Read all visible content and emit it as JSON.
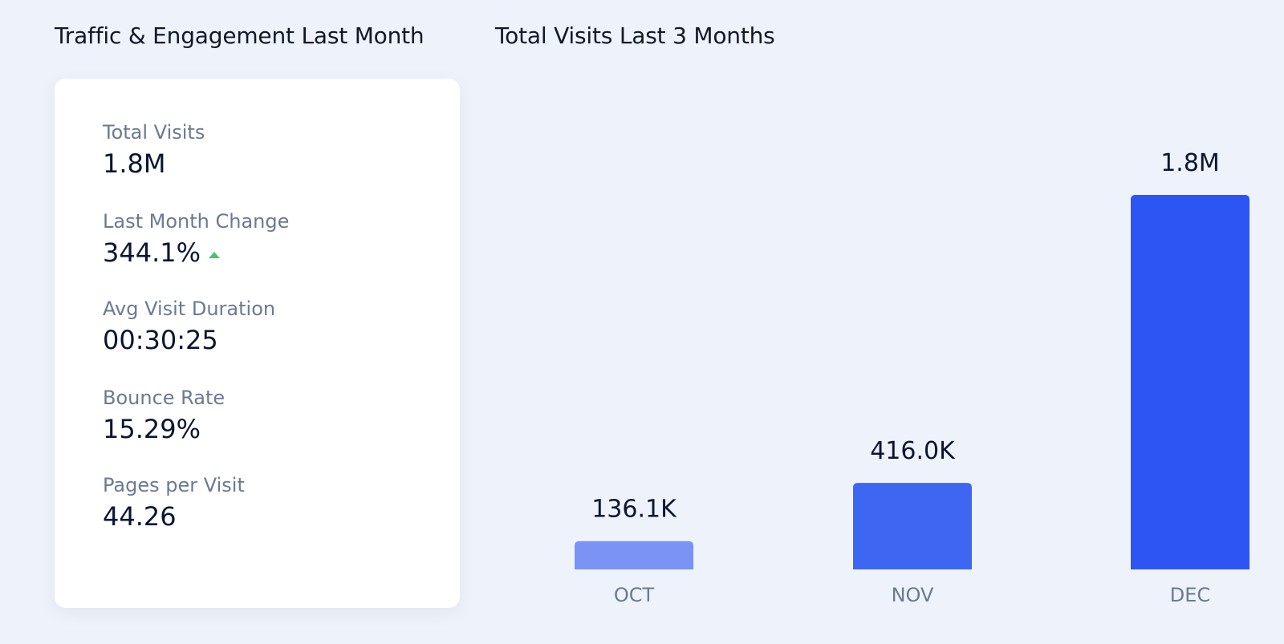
{
  "panels": {
    "left_title": "Traffic & Engagement Last Month",
    "right_title": "Total Visits Last 3 Months"
  },
  "stats": {
    "total_visits": {
      "label": "Total Visits",
      "value": "1.8M"
    },
    "last_month_change": {
      "label": "Last Month Change",
      "value": "344.1%",
      "trend": "up",
      "trend_color": "#4cc36b"
    },
    "avg_visit_duration": {
      "label": "Avg Visit Duration",
      "value": "00:30:25"
    },
    "bounce_rate": {
      "label": "Bounce Rate",
      "value": "15.29%"
    },
    "pages_per_visit": {
      "label": "Pages per Visit",
      "value": "44.26"
    }
  },
  "chart_data": {
    "type": "bar",
    "title": "Total Visits Last 3 Months",
    "categories": [
      "OCT",
      "NOV",
      "DEC"
    ],
    "values": [
      136100,
      416000,
      1800000
    ],
    "value_labels": [
      "136.1K",
      "416.0K",
      "1.8M"
    ],
    "colors": [
      "#7b93f5",
      "#3d67f2",
      "#2d55f4"
    ],
    "ylim": [
      0,
      1800000
    ],
    "grid": false,
    "legend": "none"
  }
}
